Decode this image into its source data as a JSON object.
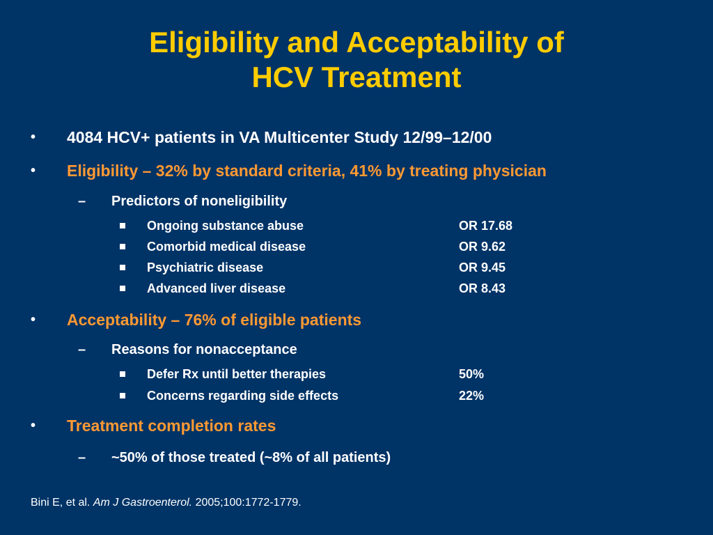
{
  "title": {
    "line1": "Eligibility and Acceptability of",
    "line2": "HCV Treatment"
  },
  "bullet_glyph": "•",
  "dash_glyph": "–",
  "bullets": [
    {
      "text": "4084 HCV+ patients in VA Multicenter Study 12/99–12/00"
    },
    {
      "text": "Eligibility – 32% by standard criteria, 41% by treating physician",
      "sub": {
        "text": "Predictors of noneligibility",
        "items": [
          {
            "label": "Ongoing substance abuse",
            "value": "OR 17.68"
          },
          {
            "label": "Comorbid medical disease",
            "value": "OR 9.62"
          },
          {
            "label": "Psychiatric disease",
            "value": "OR 9.45"
          },
          {
            "label": "Advanced liver disease",
            "value": "OR 8.43"
          }
        ]
      }
    },
    {
      "text": "Acceptability – 76% of eligible patients",
      "sub": {
        "text": "Reasons for nonacceptance",
        "items": [
          {
            "label": "Defer Rx until better therapies",
            "value": "50%"
          },
          {
            "label": "Concerns regarding side effects",
            "value": "22%"
          }
        ]
      }
    },
    {
      "text": "Treatment completion rates",
      "sub": {
        "text": "~50% of those treated (~8% of all patients)"
      }
    }
  ],
  "citation": {
    "authors": "Bini E, et al.",
    "journal": "Am J Gastroenterol.",
    "details": "2005;100:1772-1779."
  },
  "colors": {
    "background": "#003366",
    "title": "#FFCC00",
    "highlight": "#FF9933",
    "text": "#FFFFFF"
  }
}
